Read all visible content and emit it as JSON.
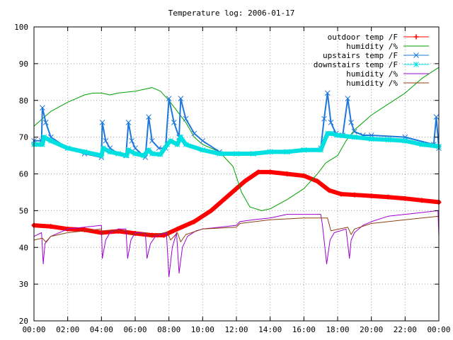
{
  "chart_data": {
    "type": "line",
    "title": "Temperature log: 2006-01-17",
    "xlabel": "",
    "ylabel": "",
    "xlim": [
      0,
      24
    ],
    "ylim": [
      20,
      100
    ],
    "grid": true,
    "legend_position": "top-right",
    "x_tick_labels": [
      "00:00",
      "02:00",
      "04:00",
      "06:00",
      "08:00",
      "10:00",
      "12:00",
      "14:00",
      "16:00",
      "18:00",
      "20:00",
      "22:00",
      "00:00"
    ],
    "y_tick_labels": [
      "20",
      "30",
      "40",
      "50",
      "60",
      "70",
      "80",
      "90",
      "100"
    ],
    "series": [
      {
        "name": "outdoor temp /F",
        "color": "#ff0000",
        "marker": "plus",
        "x": [
          0,
          1,
          2,
          3,
          4,
          5,
          6,
          7,
          7.7,
          8.5,
          9.5,
          10.5,
          11.5,
          12.5,
          13.3,
          14,
          15,
          16,
          16.8,
          17.5,
          18.2,
          19,
          20,
          21,
          22,
          23,
          24
        ],
        "y": [
          46,
          45.7,
          45,
          44.8,
          44,
          44.4,
          43.8,
          43.3,
          43.3,
          45,
          47,
          50,
          54,
          58,
          60.5,
          60.5,
          60,
          59.5,
          58,
          55.5,
          54.5,
          54.3,
          54,
          53.7,
          53.3,
          52.8,
          52.3
        ]
      },
      {
        "name": "humidity /%",
        "color": "#00a000",
        "marker": "none",
        "x": [
          0,
          1,
          2,
          3,
          3.5,
          4,
          4.5,
          5,
          6,
          6.5,
          7,
          7.5,
          8,
          8.5,
          9,
          9.5,
          10,
          11,
          11.8,
          12.3,
          12.8,
          13.5,
          14,
          15,
          16,
          16.8,
          17.3,
          18,
          18.5,
          19,
          20,
          21,
          22,
          23,
          24
        ],
        "y": [
          73,
          77,
          79.5,
          81.5,
          82,
          82,
          81.5,
          82,
          82.5,
          83,
          83.5,
          82.5,
          80,
          77,
          74,
          70,
          68,
          66,
          62,
          55,
          51,
          50,
          50.5,
          53,
          56,
          60,
          63,
          65,
          69,
          72,
          76,
          79,
          82,
          86,
          89
        ]
      },
      {
        "name": "upstairs temp /F",
        "color": "#1e78dc",
        "marker": "cross",
        "x": [
          0,
          0.45,
          0.5,
          0.7,
          1,
          2,
          3,
          4,
          4.05,
          4.25,
          4.5,
          5,
          5.45,
          5.6,
          5.8,
          6,
          6.6,
          6.8,
          7,
          7.4,
          7.8,
          8,
          8.3,
          8.6,
          8.7,
          9,
          9.5,
          10,
          11,
          12,
          13,
          14,
          15,
          16,
          17,
          17.2,
          17.4,
          17.6,
          17.9,
          18.3,
          18.6,
          18.8,
          19,
          19.5,
          20,
          22,
          23.7,
          23.85,
          24
        ],
        "y": [
          69,
          69,
          78,
          74,
          70,
          67,
          65.5,
          64.5,
          74,
          69,
          67,
          65.5,
          65,
          74,
          69,
          67,
          64.5,
          75.5,
          69,
          67,
          67,
          80.5,
          74,
          70,
          80.5,
          75,
          71,
          69,
          66,
          65.5,
          65.5,
          66,
          66,
          66.5,
          67,
          75,
          82,
          74,
          71,
          70.5,
          80.5,
          74,
          71.5,
          70.5,
          70.5,
          70,
          68,
          75.5,
          67
        ]
      },
      {
        "name": "downstairs temp /F",
        "color": "#00e0e0",
        "marker": "star",
        "x": [
          0,
          0.5,
          0.6,
          1,
          2,
          3,
          4,
          4.1,
          4.5,
          5,
          5.5,
          5.6,
          6,
          6.5,
          6.8,
          7,
          7.5,
          7.9,
          8.1,
          8.5,
          8.7,
          9,
          10,
          11,
          12,
          13,
          14,
          15,
          16,
          17,
          17.4,
          17.6,
          18,
          19,
          20,
          21,
          22,
          23,
          24
        ],
        "y": [
          68,
          68,
          70,
          69,
          67,
          66,
          65,
          67,
          66,
          65.5,
          65,
          66.5,
          65.5,
          65,
          66.5,
          65.5,
          65.3,
          68,
          69,
          68,
          70,
          68,
          66.5,
          65.5,
          65.5,
          65.5,
          66,
          66,
          66.5,
          66.5,
          71,
          71,
          70.5,
          70,
          69.5,
          69.3,
          69,
          68,
          67.5
        ]
      },
      {
        "name": "humidity /%",
        "color": "#a000d0",
        "marker": "none",
        "x": [
          0,
          0.45,
          0.55,
          0.65,
          1,
          2,
          4,
          4.05,
          4.25,
          4.5,
          5,
          5.45,
          5.55,
          5.75,
          6,
          6.6,
          6.7,
          6.9,
          7.2,
          7.85,
          8.0,
          8.2,
          8.45,
          8.6,
          8.8,
          9.1,
          9.6,
          10,
          11,
          12,
          12.2,
          13,
          14,
          15,
          16,
          17,
          17.1,
          17.35,
          17.55,
          17.8,
          18.5,
          18.7,
          18.8,
          19,
          19.5,
          20,
          21,
          22,
          23,
          23.95,
          24
        ],
        "y": [
          43,
          44,
          35.5,
          41,
          43,
          45,
          46,
          37,
          42,
          44,
          45,
          45,
          37,
          42,
          44,
          44,
          37,
          41,
          43,
          44,
          32,
          40,
          44,
          33,
          40,
          43,
          44.5,
          45,
          45.5,
          46,
          47,
          47.5,
          48,
          49,
          49,
          49,
          46,
          35.5,
          42,
          44,
          45,
          37,
          42,
          44,
          46,
          47,
          48.5,
          49,
          49.5,
          50,
          43
        ]
      },
      {
        "name": "humidity /%",
        "color": "#904010",
        "marker": "none",
        "x": [
          0,
          0.5,
          0.7,
          1,
          2,
          4,
          4.05,
          4.2,
          5.5,
          5.7,
          6.6,
          6.8,
          7.9,
          8.1,
          8.5,
          8.7,
          9,
          10,
          12,
          12.2,
          14,
          16,
          17.4,
          17.6,
          18.6,
          18.8,
          19,
          20,
          22,
          24
        ],
        "y": [
          42,
          42.5,
          41.5,
          43,
          44,
          45,
          43.5,
          44.5,
          44.5,
          43.5,
          44,
          43,
          44.2,
          42,
          44,
          41.5,
          43.5,
          45,
          45.5,
          46.5,
          47.5,
          48,
          48,
          44.5,
          45.5,
          43.5,
          45,
          46.5,
          47.5,
          48.5
        ]
      }
    ]
  }
}
